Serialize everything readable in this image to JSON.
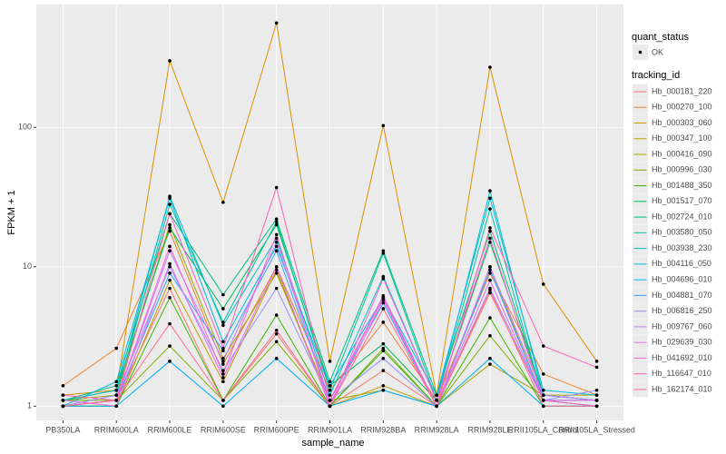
{
  "chart_data": {
    "type": "line",
    "x_label": "sample_name",
    "y_label": "FPKM + 1",
    "log_y": true,
    "grid": true,
    "categories": [
      "PB350LA",
      "RRIM600LA",
      "RRIM600LE",
      "RRIM600SE",
      "RRIM600PE",
      "RRIM901LA",
      "RRIM928BA",
      "RRIM928LA",
      "RRIM928LE",
      "RRII105LA_Control",
      "RRII105LA_Stressed"
    ],
    "ylim": [
      0.79,
      760
    ],
    "yticks": [
      1,
      10,
      100
    ],
    "point_legend_title": "quant_status",
    "point_legend_entry": "OK",
    "legend_title": "tracking_id",
    "series": [
      {
        "name": "Hb_000181_220",
        "color": "#F8766D",
        "values": [
          1.0,
          1.1,
          7,
          1.1,
          3.3,
          1.0,
          1.8,
          1.0,
          6.5,
          1.1,
          1.1
        ]
      },
      {
        "name": "Hb_000270_100",
        "color": "#EA8331",
        "values": [
          1.4,
          2.6,
          18,
          2.0,
          10,
          1.3,
          4.0,
          1.1,
          9,
          1.7,
          1.2
        ]
      },
      {
        "name": "Hb_000303_060",
        "color": "#D89000",
        "values": [
          1.2,
          1.3,
          300,
          29,
          560,
          2.1,
          103,
          1.2,
          270,
          7.5,
          2.1
        ]
      },
      {
        "name": "Hb_000347_100",
        "color": "#C09B00",
        "values": [
          1.0,
          1.0,
          8,
          1.5,
          9.5,
          1.0,
          1.4,
          1.0,
          10,
          1.1,
          1.0
        ]
      },
      {
        "name": "Hb_000416_090",
        "color": "#A3A500",
        "values": [
          1.1,
          1.2,
          20,
          2.2,
          9,
          1.1,
          1.3,
          1.0,
          2.0,
          1.2,
          1.2
        ]
      },
      {
        "name": "Hb_000996_030",
        "color": "#7CAE00",
        "values": [
          1.1,
          1.1,
          2.7,
          1.1,
          2.9,
          1.0,
          2.6,
          1.0,
          3.2,
          1.1,
          1.1
        ]
      },
      {
        "name": "Hb_001488_350",
        "color": "#39B600",
        "values": [
          1.0,
          1.0,
          6,
          1.1,
          4.5,
          1.0,
          2.5,
          1.0,
          4.3,
          1.0,
          1.0
        ]
      },
      {
        "name": "Hb_001517_070",
        "color": "#00BB4E",
        "values": [
          1.1,
          1.3,
          19,
          5,
          20,
          1.4,
          2.8,
          1.1,
          15,
          1.2,
          1.1
        ]
      },
      {
        "name": "Hb_002724_010",
        "color": "#00BF7D",
        "values": [
          1.1,
          1.4,
          24,
          6.3,
          22,
          1.5,
          13,
          1.2,
          18,
          1.2,
          1.1
        ]
      },
      {
        "name": "Hb_003580_050",
        "color": "#00C1A3",
        "values": [
          1.0,
          1.2,
          28,
          4,
          21,
          1.3,
          12.5,
          1.1,
          26,
          1.1,
          1.0
        ]
      },
      {
        "name": "Hb_003938_230",
        "color": "#00BFC4",
        "values": [
          1.1,
          1.3,
          32,
          3.8,
          16,
          1.2,
          8.5,
          1.1,
          35,
          1.2,
          1.1
        ]
      },
      {
        "name": "Hb_004116_050",
        "color": "#00BAE0",
        "values": [
          1.0,
          1.5,
          31,
          2.9,
          14,
          1.4,
          6,
          1.2,
          31,
          1.3,
          1.2
        ]
      },
      {
        "name": "Hb_004696_010",
        "color": "#00B0F6",
        "values": [
          1.0,
          1.0,
          2.1,
          1.0,
          2.2,
          1.0,
          1.3,
          1.0,
          2.2,
          1.0,
          1.0
        ]
      },
      {
        "name": "Hb_004881_070",
        "color": "#35A2FF",
        "values": [
          1.0,
          1.1,
          9,
          2.5,
          13,
          1.1,
          5.5,
          1.0,
          9.5,
          1.1,
          1.1
        ]
      },
      {
        "name": "Hb_006816_250",
        "color": "#9590FF",
        "values": [
          1.0,
          1.2,
          10,
          1.8,
          7,
          1.1,
          2.2,
          1.0,
          7,
          1.1,
          1.3
        ]
      },
      {
        "name": "Hb_009767_060",
        "color": "#C77CFF",
        "values": [
          1.0,
          1.1,
          13,
          2.1,
          15,
          1.1,
          6.2,
          1.0,
          10,
          1.2,
          1.1
        ]
      },
      {
        "name": "Hb_029639_030",
        "color": "#E76BF3",
        "values": [
          1.1,
          1.0,
          10.5,
          1.6,
          10,
          1.0,
          5.8,
          1.0,
          8,
          1.1,
          1.1
        ]
      },
      {
        "name": "Hb_041692_010",
        "color": "#FA62DB",
        "values": [
          1.0,
          1.1,
          14,
          1.7,
          17,
          1.0,
          8.2,
          1.1,
          16,
          1.1,
          1.0
        ]
      },
      {
        "name": "Hb_116647_010",
        "color": "#FF62BC",
        "values": [
          1.2,
          1.1,
          24,
          2.6,
          37,
          1.1,
          6,
          1.0,
          19,
          2.7,
          1.9
        ]
      },
      {
        "name": "Hb_162174_010",
        "color": "#FF6C91",
        "values": [
          1.0,
          1.1,
          3.9,
          1.1,
          3.5,
          1.0,
          5,
          1.0,
          6.8,
          1.0,
          1.0
        ]
      }
    ]
  }
}
